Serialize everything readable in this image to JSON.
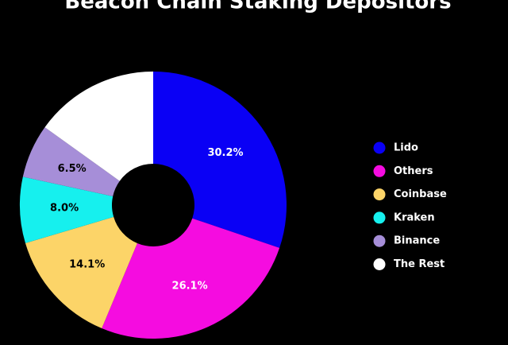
{
  "chart_data": {
    "type": "pie",
    "title": "Beacon Chain Staking Depositors",
    "categories": [
      "Lido",
      "Others",
      "Coinbase",
      "Kraken",
      "Binance",
      "The Rest"
    ],
    "values": [
      30.2,
      26.1,
      14.1,
      8.0,
      6.5,
      15.1
    ],
    "value_labels": [
      "30.2%",
      "26.1%",
      "14.1%",
      "8.0%",
      "6.5%",
      null
    ],
    "colors": [
      "#0a00f5",
      "#f50ce0",
      "#fcd468",
      "#16f0ee",
      "#a68ed8",
      "#ffffff"
    ]
  }
}
